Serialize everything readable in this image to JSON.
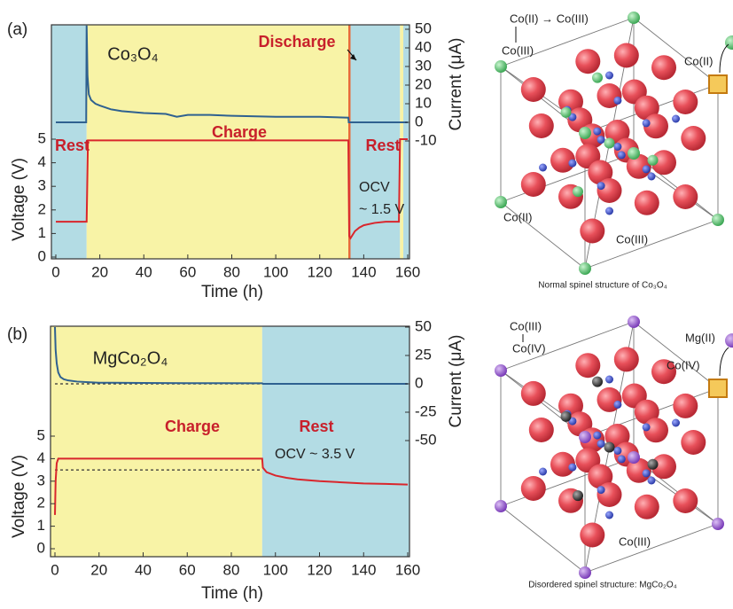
{
  "chart_data": [
    {
      "type": "line",
      "panel_label": "(a)",
      "x_label": "Time (h)",
      "y_label": "Voltage (V)",
      "y2_label": "Current (μA)",
      "xlim": [
        0,
        160
      ],
      "xticks": [
        0,
        20,
        40,
        60,
        80,
        100,
        120,
        140,
        160
      ],
      "ylim": [
        0,
        5
      ],
      "yticks": [
        0,
        1,
        2,
        3,
        4,
        5
      ],
      "y2lim": [
        -10,
        50
      ],
      "y2ticks": [
        -10,
        0,
        10,
        20,
        30,
        40,
        50
      ],
      "regions": [
        {
          "label": "Rest",
          "x": [
            0,
            14
          ],
          "color": "#b3dce4"
        },
        {
          "label": "Charge",
          "x": [
            14,
            133
          ],
          "color": "#f8f3a6"
        },
        {
          "x": [
            133,
            134
          ],
          "color": "#e86a3a"
        },
        {
          "label": "Rest",
          "x": [
            134,
            156.5
          ],
          "color": "#b3dce4"
        },
        {
          "x": [
            156.5,
            158
          ],
          "color": "#f8f3a6"
        },
        {
          "x": [
            158,
            160
          ],
          "color": "#b3dce4"
        }
      ],
      "series": [
        {
          "color": "#d9262c",
          "x": [
            0,
            14,
            14.2,
            14.6,
            133,
            133.4,
            134,
            136,
            138,
            140,
            145,
            150,
            156,
            156.5,
            157.5,
            160
          ],
          "values": [
            1.5,
            1.5,
            2.6,
            4.95,
            4.95,
            0.9,
            0.8,
            1.1,
            1.25,
            1.35,
            1.45,
            1.5,
            1.5,
            5,
            5,
            5
          ]
        },
        {
          "axis": "y2",
          "color": "#2f6190",
          "x": [
            0,
            13.8,
            14,
            14.4,
            15,
            16,
            18,
            20,
            25,
            30,
            40,
            50,
            55,
            60,
            70,
            80,
            100,
            120,
            133,
            133.2,
            160
          ],
          "values": [
            0,
            0,
            52,
            25,
            15,
            12,
            10,
            9,
            7,
            6,
            5,
            4.5,
            3,
            4,
            4,
            3.5,
            3,
            3,
            2.5,
            0,
            0
          ]
        }
      ],
      "annotations": [
        "Co₃O₄",
        "Discharge",
        "OCV",
        "~ 1.5 V"
      ]
    },
    {
      "type": "line",
      "panel_label": "(b)",
      "x_label": "Time (h)",
      "y_label": "Voltage (V)",
      "y2_label": "Current (μA)",
      "xlim": [
        0,
        160
      ],
      "xticks": [
        0,
        20,
        40,
        60,
        80,
        100,
        120,
        140,
        160
      ],
      "ylim": [
        0,
        5
      ],
      "yticks": [
        0,
        1,
        2,
        3,
        4,
        5
      ],
      "y2lim": [
        -50,
        50
      ],
      "y2ticks": [
        -50,
        -25,
        0,
        25,
        50
      ],
      "regions": [
        {
          "label": "Charge",
          "x": [
            0,
            94
          ],
          "color": "#f8f3a6"
        },
        {
          "label": "Rest",
          "x": [
            94,
            160
          ],
          "color": "#b3dce4"
        }
      ],
      "reference_lines": [
        {
          "axis": "y",
          "value": 3.5,
          "x": [
            0,
            94
          ]
        },
        {
          "axis": "y2",
          "value": 0,
          "x": [
            0,
            160
          ]
        }
      ],
      "series": [
        {
          "color": "#d9262c",
          "x": [
            0,
            0.3,
            0.8,
            1.5,
            3,
            94,
            94.3,
            96,
            100,
            105,
            110,
            120,
            130,
            140,
            150,
            160
          ],
          "values": [
            1.5,
            3,
            3.8,
            4.0,
            4.0,
            4.0,
            3.6,
            3.4,
            3.25,
            3.15,
            3.08,
            3.0,
            2.95,
            2.9,
            2.88,
            2.85
          ]
        },
        {
          "axis": "y2",
          "color": "#2f6190",
          "x": [
            0,
            0.3,
            0.8,
            1.5,
            2.5,
            4,
            6,
            10,
            15,
            20,
            40,
            60,
            94,
            94.3,
            160
          ],
          "values": [
            50,
            30,
            18,
            10,
            6,
            4,
            3,
            2,
            1.5,
            1,
            0.8,
            0.6,
            0.5,
            0,
            0
          ]
        }
      ],
      "annotations": [
        "MgCo₂O₄",
        "OCV ~ 3.5 V"
      ]
    }
  ],
  "structures": [
    {
      "labels": [
        "Co(II) → Co(III)",
        "Co(III)",
        "Co(II)",
        "Co(II)",
        "Co(III)"
      ],
      "caption": "Normal spinel structure of Co₃O₄"
    },
    {
      "labels": [
        "Co(III)",
        "Co(IV)",
        "Co(IV)",
        "Mg(II)",
        "Co(III)"
      ],
      "caption": "Disordered spinel structure: MgCo₂O₄"
    }
  ]
}
